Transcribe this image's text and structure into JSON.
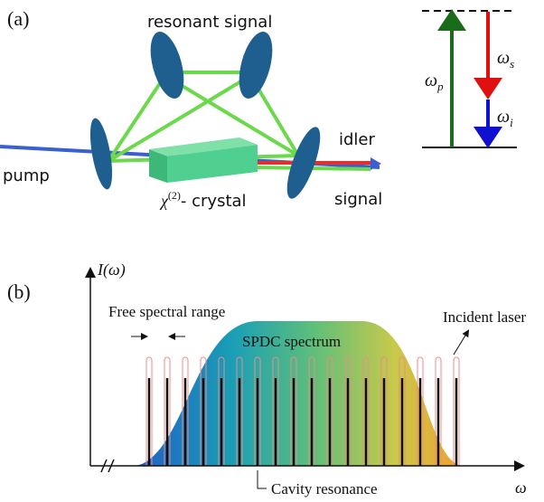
{
  "panel_a": {
    "label": "(a)",
    "resonant_signal": "resonant signal",
    "idler": "idler",
    "pump": "pump",
    "signal": "signal",
    "crystal": {
      "symbol": "χ",
      "superscript": "(2)",
      "rest": "- crystal"
    },
    "energy": {
      "omega": "ω",
      "pump_sub": "p",
      "signal_sub": "s",
      "idler_sub": "i"
    }
  },
  "panel_b": {
    "label": "(b)",
    "y_axis": {
      "symbol": "I",
      "arg": "(ω)"
    },
    "x_axis": "ω",
    "free_spectral_range": "Free spectral range",
    "incident_laser": "Incident laser",
    "spdc_spectrum": "SPDC spectrum",
    "cavity_resonance": "Cavity resonance"
  }
}
